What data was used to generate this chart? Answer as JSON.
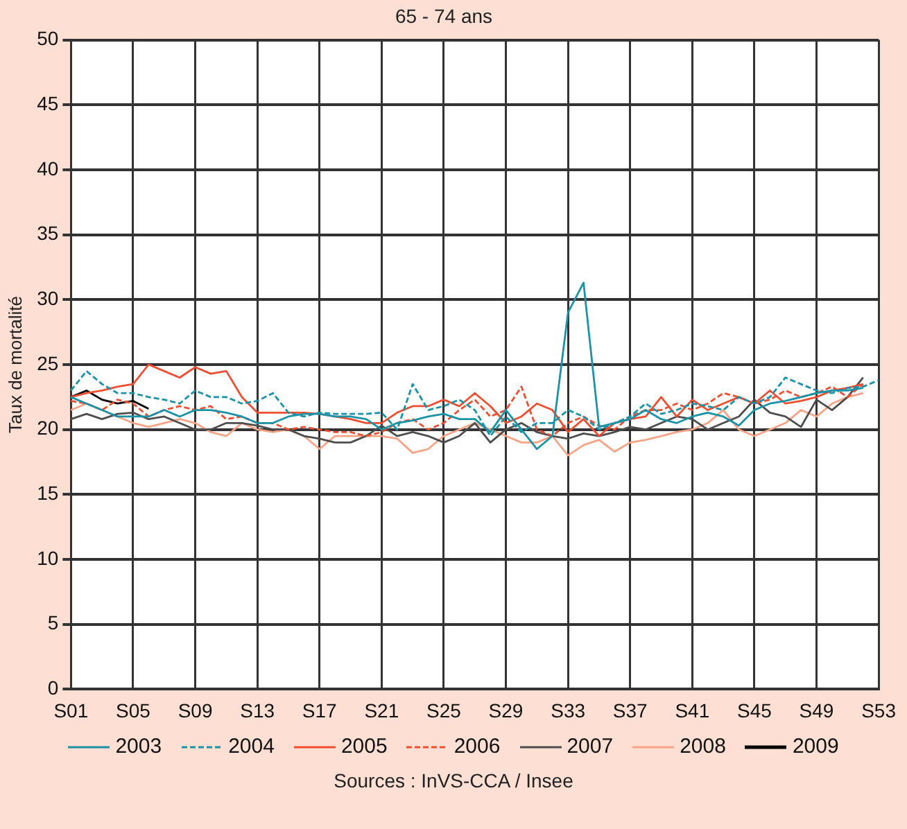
{
  "chart_data": {
    "type": "line",
    "title": "65 - 74 ans",
    "ylabel": "Taux de mortalité",
    "annotations": [
      "Sources : InVS-CCA / Insee"
    ],
    "categories": [
      "S01",
      null,
      null,
      null,
      "S05",
      null,
      null,
      null,
      "S09",
      null,
      null,
      null,
      "S13",
      null,
      null,
      null,
      "S17",
      null,
      null,
      null,
      "S21",
      null,
      null,
      null,
      "S25",
      null,
      null,
      null,
      "S29",
      null,
      null,
      null,
      "S33",
      null,
      null,
      null,
      "S37",
      null,
      null,
      null,
      "S41",
      null,
      null,
      null,
      "S45",
      null,
      null,
      null,
      "S49",
      null,
      null,
      null,
      "S53"
    ],
    "ylim": [
      0,
      50
    ],
    "yticks": [
      0,
      5,
      10,
      15,
      20,
      25,
      30,
      35,
      40,
      45,
      50
    ],
    "grid": true,
    "legend": "bottom",
    "marker": "none",
    "series": [
      {
        "name": "2003",
        "color": "#1a93a8",
        "line_style": "solid",
        "values": [
          22.5,
          22,
          21.5,
          21,
          21,
          21,
          21.5,
          21,
          21.5,
          21.5,
          21.3,
          21,
          20.5,
          20.5,
          21,
          21.2,
          21.2,
          21,
          21,
          20.8,
          20,
          20.5,
          20.7,
          21,
          21.2,
          20.8,
          20.8,
          19.8,
          21.5,
          20,
          18.5,
          19.5,
          29,
          31.3,
          20.2,
          20.5,
          20.8,
          21.5,
          20.8,
          20.5,
          21,
          21.3,
          21,
          20.3,
          21.5,
          22,
          22.2,
          22.5,
          22.8,
          23,
          23,
          23.2,
          null
        ]
      },
      {
        "name": "2004",
        "color": "#1a93a8",
        "line_style": "dashed",
        "values": [
          23,
          24.5,
          23.5,
          22.8,
          22.8,
          22.5,
          22.3,
          22,
          23,
          22.5,
          22.5,
          22,
          22.2,
          22.8,
          21.3,
          21,
          21.3,
          21.2,
          21.2,
          21.2,
          21.3,
          20,
          23.5,
          21.5,
          21.8,
          22.3,
          21.5,
          19.5,
          21,
          19.8,
          20.5,
          20.5,
          21.5,
          21,
          20,
          20.5,
          21,
          22,
          21.2,
          21.5,
          22,
          21.8,
          21.5,
          22.5,
          22,
          22.5,
          24,
          23.5,
          23,
          22.8,
          23.2,
          23.3,
          23.8
        ]
      },
      {
        "name": "2005",
        "color": "#f04e30",
        "line_style": "solid",
        "values": [
          22.5,
          22.8,
          23,
          23.3,
          23.5,
          25,
          24.5,
          24,
          24.8,
          24.3,
          24.5,
          22.5,
          21.3,
          21.3,
          21.3,
          21.3,
          21.2,
          21,
          20.8,
          20.5,
          20.5,
          21.3,
          21.8,
          21.8,
          22.3,
          21.8,
          22.8,
          21.8,
          20.5,
          21,
          22,
          21.5,
          19.8,
          20.8,
          19.5,
          20.5,
          20.8,
          21,
          22.5,
          21,
          22.3,
          21.5,
          22,
          22.5,
          22,
          23,
          22,
          22.2,
          22.5,
          23,
          23.2,
          23.5,
          null
        ]
      },
      {
        "name": "2006",
        "color": "#f04e30",
        "line_style": "dashed",
        "values": [
          22.2,
          22,
          21.5,
          22.3,
          22,
          21,
          21.5,
          21.8,
          21.5,
          21.8,
          20.8,
          21,
          20.5,
          20.5,
          20,
          20.2,
          20,
          19.8,
          19.8,
          19.5,
          19.8,
          20.5,
          20.8,
          20,
          20.5,
          21.5,
          22.3,
          21,
          21.5,
          23.3,
          20,
          19.5,
          20.5,
          21,
          20.3,
          20,
          21,
          21.5,
          21.5,
          22,
          21.5,
          22,
          22.8,
          22.5,
          22,
          22.3,
          23,
          22.5,
          22.8,
          23.3,
          22.5,
          23.5,
          null
        ]
      },
      {
        "name": "2007",
        "color": "#4d4d4d",
        "line_style": "solid",
        "values": [
          20.8,
          21.2,
          20.8,
          21.2,
          21.3,
          20.8,
          21,
          20.5,
          20,
          20,
          20.5,
          20.5,
          20.3,
          20,
          20,
          19.5,
          19.3,
          19,
          19,
          19.5,
          20.3,
          19.5,
          19.8,
          19.5,
          19,
          19.5,
          20.5,
          19,
          20,
          20.5,
          19.8,
          19.5,
          19.3,
          19.7,
          19.5,
          19.8,
          20.2,
          20,
          20.5,
          21,
          20.8,
          20,
          20.5,
          21,
          22.3,
          21.3,
          21,
          20.2,
          22.3,
          21.5,
          22.5,
          24,
          null
        ]
      },
      {
        "name": "2008",
        "color": "#f7a386",
        "line_style": "solid",
        "values": [
          21.5,
          22,
          21.5,
          21,
          20.5,
          20.2,
          20.5,
          20.8,
          20.5,
          19.8,
          19.5,
          20.5,
          20,
          19.8,
          20,
          19.5,
          18.5,
          19.5,
          19.5,
          19.5,
          19.5,
          19.3,
          18.2,
          18.5,
          19.5,
          20,
          20.5,
          20,
          19.5,
          19,
          19,
          19.5,
          18,
          18.8,
          19.2,
          18.3,
          19,
          19.2,
          19.5,
          19.8,
          20,
          20.5,
          21.5,
          20,
          19.5,
          20,
          20.5,
          21.5,
          21,
          22,
          22.5,
          22.8,
          null
        ]
      },
      {
        "name": "2009",
        "color": "#000000",
        "line_style": "solid",
        "values": [
          22.5,
          23,
          22.3,
          22,
          22.2,
          21.6,
          null,
          null,
          null,
          null,
          null,
          null,
          null,
          null,
          null,
          null,
          null,
          null,
          null,
          null,
          null,
          null,
          null,
          null,
          null,
          null,
          null,
          null,
          null,
          null,
          null,
          null,
          null,
          null,
          null,
          null,
          null,
          null,
          null,
          null,
          null,
          null,
          null,
          null,
          null,
          null,
          null,
          null,
          null,
          null,
          null,
          null,
          null
        ]
      }
    ]
  }
}
